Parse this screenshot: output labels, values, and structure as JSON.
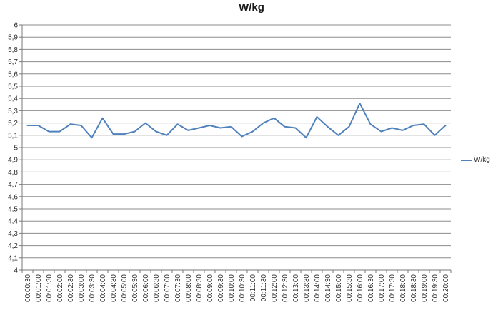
{
  "title": "W/kg",
  "legend": {
    "label": "W/kg"
  },
  "colors": {
    "series": "#4F81BD",
    "gridline": "#8d8d8d",
    "axis": "#7a7a7a",
    "tick_label": "#2e2e2e",
    "title": "#1a1a1a",
    "background": "#ffffff"
  },
  "chart_data": {
    "type": "line",
    "title": "W/kg",
    "xlabel": "",
    "ylabel": "",
    "ylim": [
      4,
      6
    ],
    "ytick_step": 0.1,
    "decimal_separator": ",",
    "grid": true,
    "legend_position": "right",
    "categories": [
      "00:00:30",
      "00:01:00",
      "00:01:30",
      "00:02:00",
      "00:02:30",
      "00:03:00",
      "00:03:30",
      "00:04:00",
      "00:04:30",
      "00:05:00",
      "00:05:30",
      "00:06:00",
      "00:06:30",
      "00:07:00",
      "00:07:30",
      "00:08:00",
      "00:08:30",
      "00:09:00",
      "00:09:30",
      "00:10:00",
      "00:10:30",
      "00:11:00",
      "00:11:30",
      "00:12:00",
      "00:12:30",
      "00:13:00",
      "00:13:30",
      "00:14:00",
      "00:14:30",
      "00:15:00",
      "00:15:30",
      "00:16:00",
      "00:16:30",
      "00:17:00",
      "00:17:30",
      "00:18:00",
      "00:18:30",
      "00:19:00",
      "00:19:30",
      "00:20:00"
    ],
    "series": [
      {
        "name": "W/kg",
        "color": "#4F81BD",
        "values": [
          5.18,
          5.18,
          5.13,
          5.13,
          5.19,
          5.18,
          5.08,
          5.24,
          5.11,
          5.11,
          5.13,
          5.2,
          5.13,
          5.1,
          5.19,
          5.14,
          5.16,
          5.18,
          5.16,
          5.17,
          5.09,
          5.13,
          5.2,
          5.24,
          5.17,
          5.16,
          5.08,
          5.25,
          5.17,
          5.1,
          5.17,
          5.36,
          5.19,
          5.13,
          5.16,
          5.14,
          5.18,
          5.19,
          5.1,
          5.18
        ]
      }
    ]
  }
}
